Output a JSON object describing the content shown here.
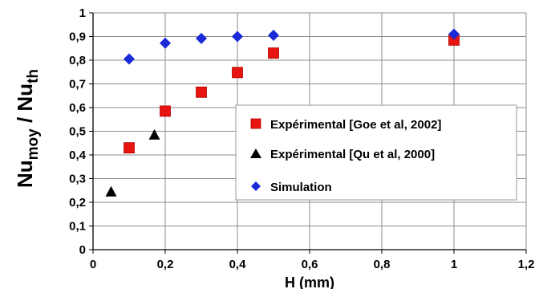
{
  "chart_data": {
    "type": "scatter",
    "xlabel": "H (mm)",
    "ylabel": {
      "main": "Nu",
      "sub1": "moy",
      "sep": " / Nu",
      "sub2": "th"
    },
    "xlim": [
      0,
      1.2
    ],
    "ylim": [
      0,
      1
    ],
    "x_ticks": [
      "0",
      "0,2",
      "0,4",
      "0,6",
      "0,8",
      "1",
      "1,2"
    ],
    "y_ticks": [
      "0",
      "0,1",
      "0,2",
      "0,3",
      "0,4",
      "0,5",
      "0,6",
      "0,7",
      "0,8",
      "0,9",
      "1"
    ],
    "grid": true,
    "legend_position": "right",
    "series": [
      {
        "name": "Expérimental [Goe et al, 2002]",
        "marker": "square",
        "color": "#e8140f",
        "points": [
          [
            0.1,
            0.43
          ],
          [
            0.2,
            0.585
          ],
          [
            0.3,
            0.665
          ],
          [
            0.4,
            0.748
          ],
          [
            0.5,
            0.83
          ],
          [
            1.0,
            0.885
          ]
        ]
      },
      {
        "name": "Expérimental [Qu et al, 2000]",
        "marker": "triangle",
        "color": "#000000",
        "points": [
          [
            0.05,
            0.245
          ],
          [
            0.17,
            0.485
          ]
        ]
      },
      {
        "name": "Simulation",
        "marker": "diamond",
        "color": "#1a2ad6",
        "points": [
          [
            0.1,
            0.805
          ],
          [
            0.2,
            0.872
          ],
          [
            0.3,
            0.892
          ],
          [
            0.4,
            0.9
          ],
          [
            0.5,
            0.905
          ],
          [
            1.0,
            0.91
          ]
        ]
      }
    ]
  }
}
